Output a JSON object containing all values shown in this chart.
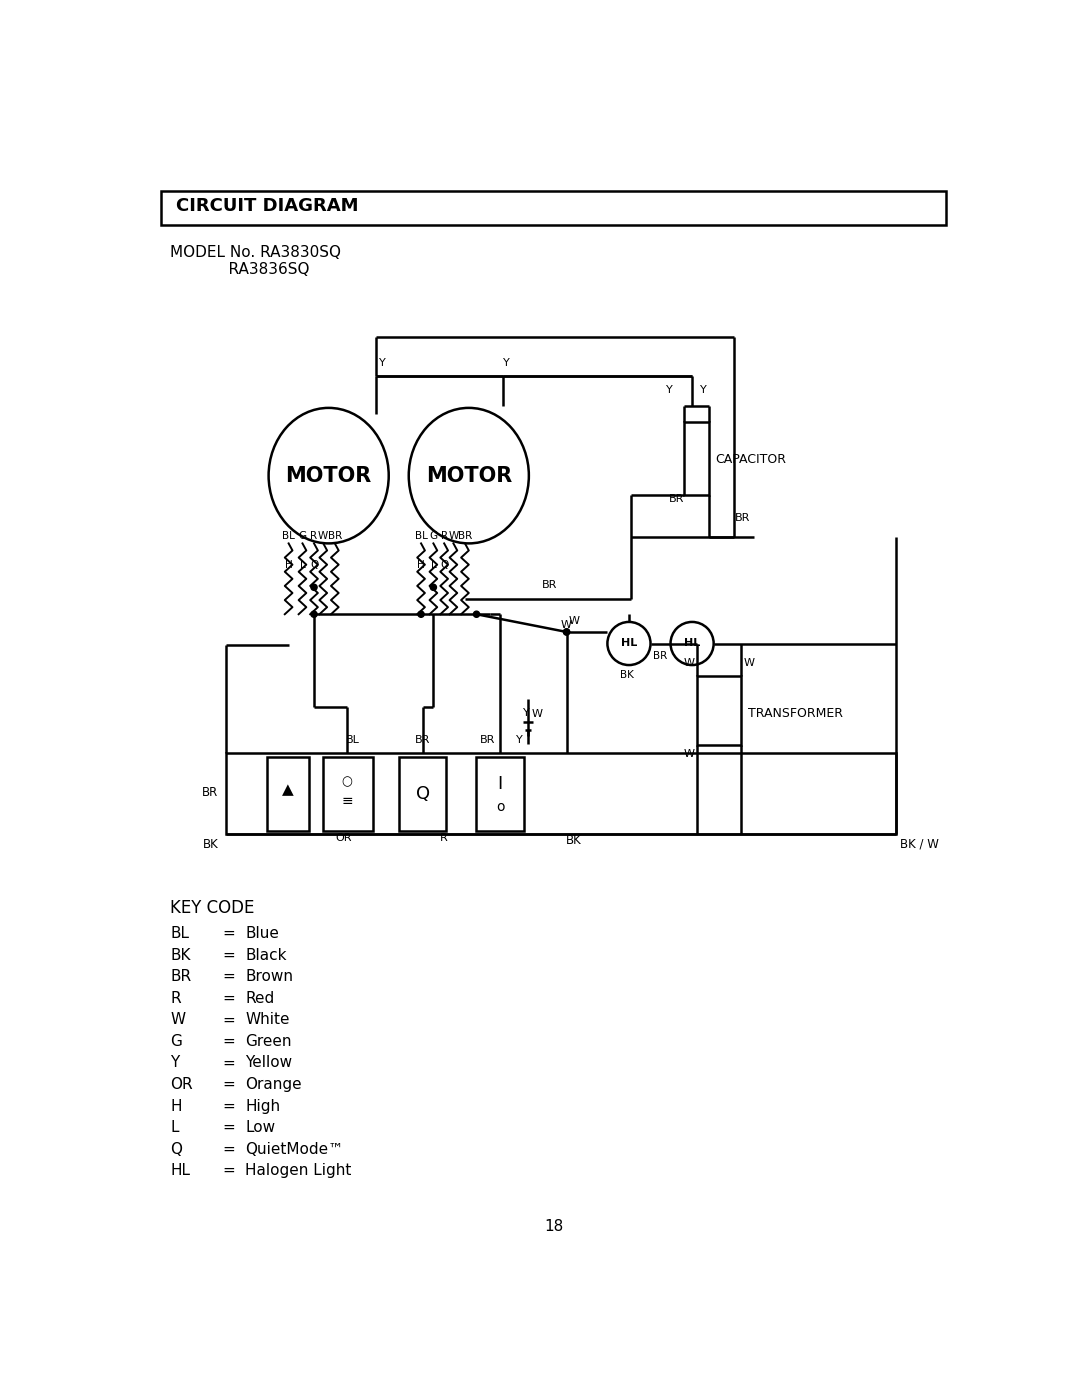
{
  "title": "CIRCUIT DIAGRAM",
  "model_line1": "MODEL No. RA3830SQ",
  "model_line2": "            RA3836SQ",
  "page_number": "18",
  "key_code_title": "KEY CODE",
  "key_codes": [
    [
      "BL",
      "=",
      "Blue"
    ],
    [
      "BK",
      "=",
      "Black"
    ],
    [
      "BR",
      "=",
      "Brown"
    ],
    [
      "R",
      "=",
      "Red"
    ],
    [
      "W",
      "=",
      "White"
    ],
    [
      "G",
      "=",
      "Green"
    ],
    [
      "Y",
      "=",
      "Yellow"
    ],
    [
      "OR",
      "=",
      "Orange"
    ],
    [
      "H",
      "=",
      "High"
    ],
    [
      "L",
      "=",
      "Low"
    ],
    [
      "Q",
      "=",
      "QuietMode™"
    ],
    [
      "HL",
      "=",
      "Halogen Light"
    ]
  ],
  "bg_color": "#ffffff",
  "line_color": "#000000"
}
